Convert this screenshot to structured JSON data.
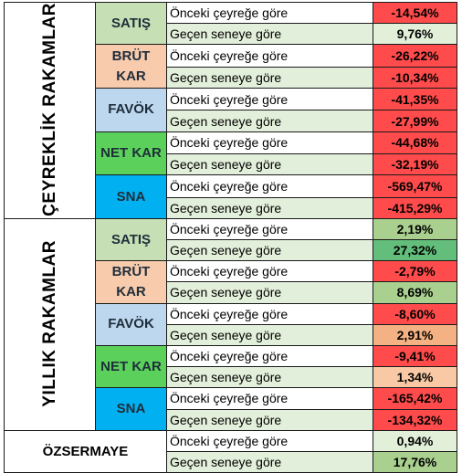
{
  "colors": {
    "satis": "#c6dfb4",
    "brut_kar": "#f8cbad",
    "favok": "#bdd7ee",
    "net_kar": "#5bd15b",
    "sna": "#00b0f0",
    "prev_quarter_label": "#ffffff",
    "prev_year_label": "#e2efda",
    "neg_value": "#ff4b4b",
    "pos_light": "#a9d08e",
    "pos_strong": "#63be7b",
    "pos_pale": "#e2f0d9",
    "orange": "#f4b183",
    "orange_light": "#f8c9a4"
  },
  "quarterly": {
    "title": "ÇEYREKLİK RAKAMLAR",
    "groups": [
      {
        "name": "SATIŞ",
        "color_key": "satis",
        "rows": [
          {
            "label": "Önceki çeyreğe göre",
            "value": "-14,54%",
            "val_color": "neg_value"
          },
          {
            "label": "Geçen seneye göre",
            "value": "9,76%",
            "val_color": "pos_pale"
          }
        ]
      },
      {
        "name": "BRÜT KAR",
        "name_lines": [
          "BRÜT",
          "KAR"
        ],
        "color_key": "brut_kar",
        "rows": [
          {
            "label": "Önceki çeyreğe göre",
            "value": "-26,22%",
            "val_color": "neg_value"
          },
          {
            "label": "Geçen seneye göre",
            "value": "-10,34%",
            "val_color": "neg_value"
          }
        ]
      },
      {
        "name": "FAVÖK",
        "color_key": "favok",
        "rows": [
          {
            "label": "Önceki çeyreğe göre",
            "value": "-41,35%",
            "val_color": "neg_value"
          },
          {
            "label": "Geçen seneye göre",
            "value": "-27,99%",
            "val_color": "neg_value"
          }
        ]
      },
      {
        "name": "NET KAR",
        "color_key": "net_kar",
        "rows": [
          {
            "label": "Önceki çeyreğe göre",
            "value": "-44,68%",
            "val_color": "neg_value"
          },
          {
            "label": "Geçen seneye göre",
            "value": "-32,19%",
            "val_color": "neg_value"
          }
        ]
      },
      {
        "name": "SNA",
        "color_key": "sna",
        "rows": [
          {
            "label": "Önceki çeyreğe göre",
            "value": "-569,47%",
            "val_color": "neg_value"
          },
          {
            "label": "Geçen seneye göre",
            "value": "-415,29%",
            "val_color": "neg_value"
          }
        ]
      }
    ]
  },
  "annual": {
    "title": "YILLIK RAKAMLAR",
    "groups": [
      {
        "name": "SATIŞ",
        "color_key": "satis",
        "rows": [
          {
            "label": "Önceki çeyreğe göre",
            "value": "2,19%",
            "val_color": "pos_light"
          },
          {
            "label": "Geçen seneye göre",
            "value": "27,32%",
            "val_color": "pos_strong"
          }
        ]
      },
      {
        "name": "BRÜT KAR",
        "name_lines": [
          "BRÜT",
          "KAR"
        ],
        "color_key": "brut_kar",
        "rows": [
          {
            "label": "Önceki çeyreğe göre",
            "value": "-2,79%",
            "val_color": "neg_value"
          },
          {
            "label": "Geçen seneye göre",
            "value": "8,69%",
            "val_color": "pos_light"
          }
        ]
      },
      {
        "name": "FAVÖK",
        "color_key": "favok",
        "rows": [
          {
            "label": "Önceki çeyreğe göre",
            "value": "-8,60%",
            "val_color": "neg_value"
          },
          {
            "label": "Geçen seneye göre",
            "value": "2,91%",
            "val_color": "orange"
          }
        ]
      },
      {
        "name": "NET KAR",
        "color_key": "net_kar",
        "rows": [
          {
            "label": "Önceki çeyreğe göre",
            "value": "-9,41%",
            "val_color": "neg_value"
          },
          {
            "label": "Geçen seneye göre",
            "value": "1,34%",
            "val_color": "orange_light"
          }
        ]
      },
      {
        "name": "SNA",
        "color_key": "sna",
        "rows": [
          {
            "label": "Önceki çeyreğe göre",
            "value": "-165,42%",
            "val_color": "neg_value"
          },
          {
            "label": "Geçen seneye göre",
            "value": "-134,32%",
            "val_color": "neg_value"
          }
        ]
      }
    ]
  },
  "equity": {
    "title": "ÖZSERMAYE",
    "rows": [
      {
        "label": "Önceki çeyreğe göre",
        "value": "0,94%",
        "val_color": "pos_pale"
      },
      {
        "label": "Geçen seneye göre",
        "value": "17,76%",
        "val_color": "pos_light"
      }
    ]
  }
}
